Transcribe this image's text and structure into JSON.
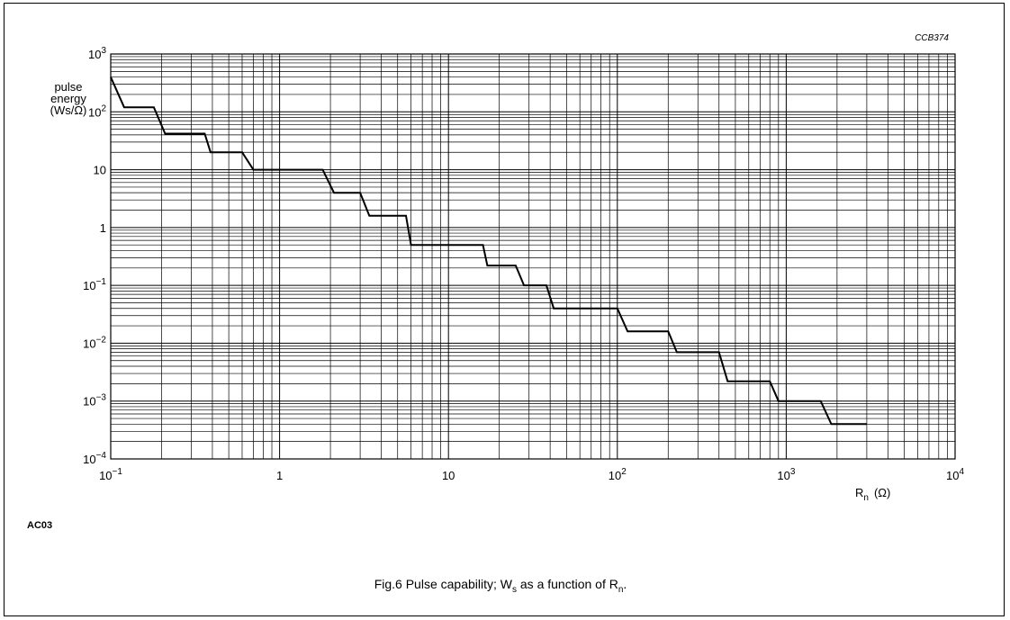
{
  "figure": {
    "code": "CCB374",
    "side_label": "AC03",
    "caption_prefix": "Fig.6  Pulse capability; W",
    "caption_sub1": "s",
    "caption_mid": " as a function of R",
    "caption_sub2": "n",
    "caption_suffix": "."
  },
  "chart_data": {
    "type": "line",
    "xscale": "log",
    "yscale": "log",
    "xlim": [
      0.1,
      10000
    ],
    "ylim": [
      0.0001,
      1000
    ],
    "grid": true,
    "ylabel_lines": [
      "pulse",
      "energy",
      "(Ws/Ω)"
    ],
    "xlabel_main": "R",
    "xlabel_sub": "n",
    "xlabel_unit": "(Ω)",
    "x_ticks": [
      {
        "value": 0.1,
        "base": "10",
        "exp": "−1"
      },
      {
        "value": 1,
        "base": "1",
        "exp": ""
      },
      {
        "value": 10,
        "base": "10",
        "exp": ""
      },
      {
        "value": 100,
        "base": "10",
        "exp": "2"
      },
      {
        "value": 1000,
        "base": "10",
        "exp": "3"
      },
      {
        "value": 10000,
        "base": "10",
        "exp": "4"
      }
    ],
    "y_ticks": [
      {
        "value": 1000,
        "base": "10",
        "exp": "3"
      },
      {
        "value": 100,
        "base": "10",
        "exp": "2"
      },
      {
        "value": 10,
        "base": "10",
        "exp": ""
      },
      {
        "value": 1,
        "base": "1",
        "exp": ""
      },
      {
        "value": 0.1,
        "base": "10",
        "exp": "−1"
      },
      {
        "value": 0.01,
        "base": "10",
        "exp": "−2"
      },
      {
        "value": 0.001,
        "base": "10",
        "exp": "−3"
      },
      {
        "value": 0.0001,
        "base": "10",
        "exp": "−4"
      }
    ],
    "series": [
      {
        "x": [
          0.1,
          0.12,
          0.18,
          0.21,
          0.36,
          0.39,
          0.6,
          0.7,
          1.8,
          2.1,
          3.0,
          3.4,
          5.6,
          6.0,
          16,
          17,
          25,
          28,
          38,
          42,
          100,
          115,
          200,
          225,
          400,
          450,
          800,
          900,
          1600,
          1850,
          3000
        ],
        "y": [
          400,
          120,
          120,
          42,
          42,
          20,
          20,
          10,
          10,
          4,
          4,
          1.6,
          1.6,
          0.5,
          0.5,
          0.22,
          0.22,
          0.1,
          0.1,
          0.04,
          0.04,
          0.016,
          0.016,
          0.007,
          0.007,
          0.0022,
          0.0022,
          0.001,
          0.001,
          0.0004,
          0.0004
        ]
      }
    ]
  }
}
